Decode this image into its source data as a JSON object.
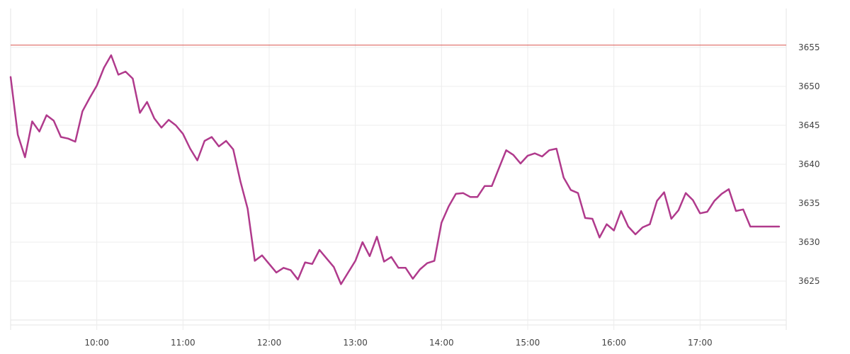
{
  "chart_data": {
    "type": "line",
    "title": "",
    "xlabel": "",
    "ylabel": "",
    "x_ticks": [
      "10:00",
      "11:00",
      "12:00",
      "13:00",
      "14:00",
      "15:00",
      "16:00",
      "17:00"
    ],
    "y_ticks": [
      3625,
      3630,
      3635,
      3640,
      3645,
      3650,
      3655
    ],
    "xlim": [
      "09:00",
      "18:00"
    ],
    "ylim": [
      3620,
      3660
    ],
    "grid": true,
    "y_axis_position": "right",
    "reference_line": {
      "value": 3655.3,
      "color": "#d9534f"
    },
    "series": [
      {
        "color": "#b03a8c",
        "x": [
          "09:00",
          "09:05",
          "09:10",
          "09:15",
          "09:20",
          "09:25",
          "09:30",
          "09:35",
          "09:40",
          "09:45",
          "09:50",
          "09:55",
          "10:00",
          "10:05",
          "10:10",
          "10:15",
          "10:20",
          "10:25",
          "10:30",
          "10:35",
          "10:40",
          "10:45",
          "10:50",
          "10:55",
          "11:00",
          "11:05",
          "11:10",
          "11:15",
          "11:20",
          "11:25",
          "11:30",
          "11:35",
          "11:40",
          "11:45",
          "11:50",
          "11:55",
          "12:00",
          "12:05",
          "12:10",
          "12:15",
          "12:20",
          "12:25",
          "12:30",
          "12:35",
          "12:40",
          "12:45",
          "12:50",
          "12:55",
          "13:00",
          "13:05",
          "13:10",
          "13:15",
          "13:20",
          "13:25",
          "13:30",
          "13:35",
          "13:40",
          "13:45",
          "13:50",
          "13:55",
          "14:00",
          "14:05",
          "14:10",
          "14:15",
          "14:20",
          "14:25",
          "14:30",
          "14:35",
          "14:40",
          "14:45",
          "14:50",
          "14:55",
          "15:00",
          "15:05",
          "15:10",
          "15:15",
          "15:20",
          "15:25",
          "15:30",
          "15:35",
          "15:40",
          "15:45",
          "15:50",
          "15:55",
          "16:00",
          "16:05",
          "16:10",
          "16:15",
          "16:20",
          "16:25",
          "16:30",
          "16:35",
          "16:40",
          "16:45",
          "16:50",
          "16:55",
          "17:00",
          "17:05",
          "17:10",
          "17:15",
          "17:20",
          "17:25",
          "17:30",
          "17:35",
          "17:40",
          "17:45",
          "17:50",
          "17:55"
        ],
        "values": [
          3651.2,
          3643.8,
          3640.9,
          3645.5,
          3644.2,
          3646.3,
          3645.6,
          3643.5,
          3643.3,
          3642.9,
          3646.8,
          3648.5,
          3650.1,
          3652.4,
          3654.0,
          3651.5,
          3651.9,
          3651.0,
          3646.6,
          3648.0,
          3645.9,
          3644.7,
          3645.7,
          3645.0,
          3643.9,
          3642.0,
          3640.5,
          3643.0,
          3643.5,
          3642.3,
          3643.0,
          3641.9,
          3637.8,
          3634.3,
          3627.6,
          3628.3,
          3627.2,
          3626.1,
          3626.7,
          3626.4,
          3625.2,
          3627.4,
          3627.2,
          3629.0,
          3627.9,
          3626.8,
          3624.6,
          3626.1,
          3627.6,
          3630.0,
          3628.2,
          3630.7,
          3627.5,
          3628.1,
          3626.7,
          3626.7,
          3625.3,
          3626.5,
          3627.3,
          3627.6,
          3632.5,
          3634.6,
          3636.2,
          3636.3,
          3635.8,
          3635.8,
          3637.2,
          3637.2,
          3639.5,
          3641.8,
          3641.2,
          3640.1,
          3641.1,
          3641.4,
          3641.0,
          3641.8,
          3642.0,
          3638.3,
          3636.7,
          3636.3,
          3633.1,
          3633.0,
          3630.6,
          3632.3,
          3631.5,
          3634.0,
          3632.0,
          3631.0,
          3631.9,
          3632.3,
          3635.3,
          3636.4,
          3633.0,
          3634.1,
          3636.3,
          3635.4,
          3633.7,
          3633.9,
          3635.3,
          3636.2,
          3636.8,
          3634.0,
          3634.2,
          3632.0,
          3632.0,
          3632.0,
          3632.0,
          3632.0
        ]
      }
    ]
  }
}
